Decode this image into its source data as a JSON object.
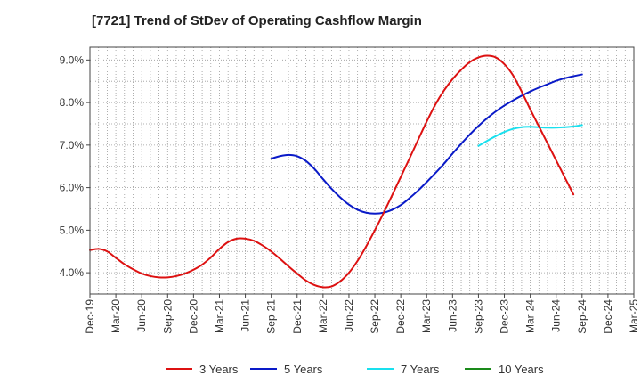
{
  "chart_data": {
    "type": "line",
    "title": "[7721]  Trend of StDev of Operating Cashflow Margin",
    "xlabel": "",
    "ylabel": "",
    "x_ticks": [
      "Dec-19",
      "Mar-20",
      "Jun-20",
      "Sep-20",
      "Dec-20",
      "Mar-21",
      "Jun-21",
      "Sep-21",
      "Dec-21",
      "Mar-22",
      "Jun-22",
      "Sep-22",
      "Dec-22",
      "Mar-23",
      "Jun-23",
      "Sep-23",
      "Dec-23",
      "Mar-24",
      "Jun-24",
      "Sep-24",
      "Dec-24",
      "Mar-25"
    ],
    "y_ticks": [
      "4.0%",
      "5.0%",
      "6.0%",
      "7.0%",
      "8.0%",
      "9.0%"
    ],
    "y_tick_values": [
      4.0,
      5.0,
      6.0,
      7.0,
      8.0,
      9.0
    ],
    "ylim": [
      3.5,
      9.3
    ],
    "grid": true,
    "legend_position": "bottom",
    "series": [
      {
        "name": "3 Years",
        "color": "#dd1111",
        "x": [
          "Dec-19",
          "Jan-20",
          "Feb-20",
          "Mar-20",
          "Apr-20",
          "May-20",
          "Jun-20",
          "Jul-20",
          "Aug-20",
          "Sep-20",
          "Oct-20",
          "Nov-20",
          "Dec-20",
          "Jan-21",
          "Feb-21",
          "Mar-21",
          "Apr-21",
          "May-21",
          "Jun-21",
          "Jul-21",
          "Aug-21",
          "Sep-21",
          "Oct-21",
          "Nov-21",
          "Dec-21",
          "Jan-22",
          "Feb-22",
          "Mar-22",
          "Apr-22",
          "May-22",
          "Jun-22",
          "Jul-22",
          "Aug-22",
          "Sep-22",
          "Oct-22",
          "Nov-22",
          "Dec-22",
          "Jan-23",
          "Feb-23",
          "Mar-23",
          "Apr-23",
          "May-23",
          "Jun-23",
          "Jul-23",
          "Aug-23",
          "Sep-23",
          "Oct-23",
          "Nov-23",
          "Dec-23",
          "Jan-24",
          "Feb-24",
          "Mar-24",
          "Apr-24",
          "May-24",
          "Jun-24",
          "Jul-24",
          "Aug-24",
          "Sep-24"
        ],
        "values": [
          4.53,
          4.56,
          4.5,
          4.35,
          4.2,
          4.08,
          3.98,
          3.92,
          3.89,
          3.89,
          3.92,
          3.98,
          4.07,
          4.19,
          4.36,
          4.56,
          4.72,
          4.8,
          4.8,
          4.75,
          4.64,
          4.5,
          4.33,
          4.15,
          3.98,
          3.82,
          3.71,
          3.66,
          3.68,
          3.8,
          4.0,
          4.28,
          4.62,
          5.0,
          5.4,
          5.82,
          6.25,
          6.68,
          7.12,
          7.55,
          7.95,
          8.28,
          8.55,
          8.77,
          8.95,
          9.06,
          9.1,
          9.06,
          8.9,
          8.64,
          8.26,
          7.84,
          7.44,
          7.04,
          6.64,
          6.24,
          5.84,
          5.84
        ],
        "visible_count": 58
      },
      {
        "name": "5 Years",
        "color": "#0a1ac8",
        "x": [
          "Sep-21",
          "Oct-21",
          "Nov-21",
          "Dec-21",
          "Jan-22",
          "Feb-22",
          "Mar-22",
          "Apr-22",
          "May-22",
          "Jun-22",
          "Jul-22",
          "Aug-22",
          "Sep-22",
          "Oct-22",
          "Nov-22",
          "Dec-22",
          "Jan-23",
          "Feb-23",
          "Mar-23",
          "Apr-23",
          "May-23",
          "Jun-23",
          "Jul-23",
          "Aug-23",
          "Sep-23",
          "Oct-23",
          "Nov-23",
          "Dec-23",
          "Jan-24",
          "Feb-24",
          "Mar-24",
          "Apr-24",
          "May-24",
          "Jun-24",
          "Jul-24",
          "Aug-24",
          "Sep-24"
        ],
        "values": [
          6.68,
          6.74,
          6.77,
          6.74,
          6.63,
          6.44,
          6.2,
          5.97,
          5.77,
          5.6,
          5.48,
          5.41,
          5.39,
          5.41,
          5.48,
          5.59,
          5.75,
          5.93,
          6.13,
          6.34,
          6.56,
          6.8,
          7.03,
          7.25,
          7.45,
          7.63,
          7.79,
          7.93,
          8.05,
          8.16,
          8.26,
          8.35,
          8.43,
          8.51,
          8.57,
          8.62,
          8.66
        ]
      },
      {
        "name": "7 Years",
        "color": "#19e0ee",
        "x": [
          "Sep-23",
          "Oct-23",
          "Nov-23",
          "Dec-23",
          "Jan-24",
          "Feb-24",
          "Mar-24",
          "Apr-24",
          "May-24",
          "Jun-24",
          "Jul-24",
          "Aug-24",
          "Sep-24"
        ],
        "values": [
          6.98,
          7.1,
          7.21,
          7.31,
          7.38,
          7.42,
          7.43,
          7.42,
          7.41,
          7.41,
          7.42,
          7.44,
          7.47
        ]
      },
      {
        "name": "10 Years",
        "color": "#1a8a1a",
        "x": [],
        "values": []
      }
    ]
  }
}
